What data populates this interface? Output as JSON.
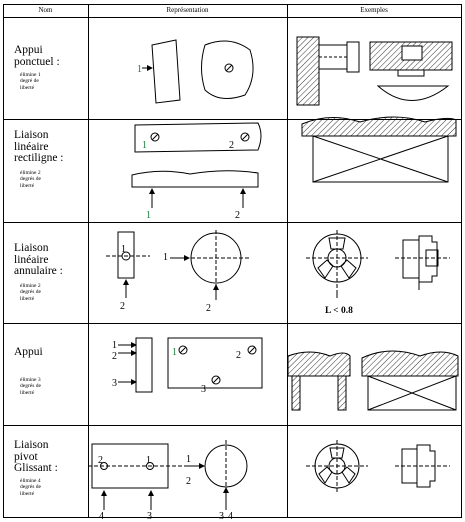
{
  "header": {
    "col_nom": "Nom",
    "col_representation": "Représentation",
    "col_exemples": "Exemples"
  },
  "rows": [
    {
      "name": "Appui\nponctuel :",
      "subtitle": "élimine 1\ndegré de\nliberté",
      "markers": [
        "1"
      ]
    },
    {
      "name": "Liaison\nlinéaire\nrectiligne :",
      "subtitle": "élimine 2\ndegrés de\nliberté",
      "markers": [
        "1",
        "2",
        "1",
        "2"
      ]
    },
    {
      "name": "Liaison\nlinéaire\nannulaire :",
      "subtitle": "élimine 2\ndegrés de\nliberté",
      "markers": [
        "1",
        "1",
        "2",
        "2"
      ],
      "example_note": "L  <  0.8"
    },
    {
      "name": "Appui",
      "subtitle": "élimine 3\ndegrés de\nliberté",
      "markers": [
        "1",
        "2",
        "3",
        "1",
        "2",
        "3"
      ]
    },
    {
      "name": "Liaison\npivot\nGlissant :",
      "subtitle": "élimine 4\ndegrés de\nliberté",
      "markers": [
        "2",
        "1",
        "1",
        "2",
        "4",
        "3",
        "3",
        "4"
      ]
    }
  ],
  "colors": {
    "line": "#000000",
    "marker_green": "#1a7a3a"
  }
}
